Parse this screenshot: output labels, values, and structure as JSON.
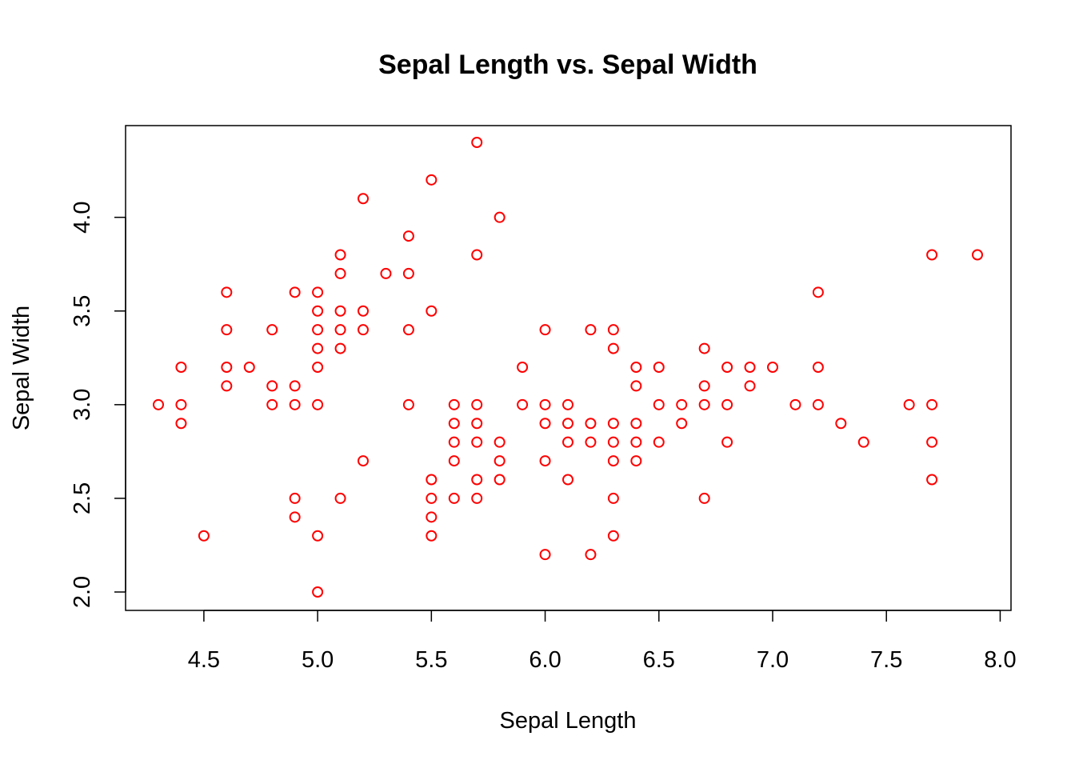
{
  "chart_data": {
    "type": "scatter",
    "title": "Sepal Length vs. Sepal Width",
    "xlabel": "Sepal Length",
    "ylabel": "Sepal Width",
    "xlim": [
      4.3,
      7.9
    ],
    "ylim": [
      2.0,
      4.4
    ],
    "x_ticks": [
      "4.5",
      "5.0",
      "5.5",
      "6.0",
      "6.5",
      "7.0",
      "7.5",
      "8.0"
    ],
    "y_ticks": [
      "2.0",
      "2.5",
      "3.0",
      "3.5",
      "4.0"
    ],
    "grid": false,
    "legend": "none",
    "marker": "open-circle",
    "point_color": "#ff0000",
    "points": [
      [
        4.3,
        3.0
      ],
      [
        4.4,
        3.2
      ],
      [
        4.4,
        3.0
      ],
      [
        4.4,
        2.9
      ],
      [
        4.5,
        2.3
      ],
      [
        4.6,
        3.6
      ],
      [
        4.6,
        3.4
      ],
      [
        4.6,
        3.2
      ],
      [
        4.6,
        3.1
      ],
      [
        4.7,
        3.2
      ],
      [
        4.8,
        3.4
      ],
      [
        4.8,
        3.1
      ],
      [
        4.8,
        3.0
      ],
      [
        4.9,
        3.6
      ],
      [
        4.9,
        3.1
      ],
      [
        4.9,
        3.0
      ],
      [
        4.9,
        2.5
      ],
      [
        4.9,
        2.4
      ],
      [
        5.0,
        3.6
      ],
      [
        5.0,
        3.5
      ],
      [
        5.0,
        3.4
      ],
      [
        5.0,
        3.3
      ],
      [
        5.0,
        3.2
      ],
      [
        5.0,
        3.0
      ],
      [
        5.0,
        2.3
      ],
      [
        5.0,
        2.0
      ],
      [
        5.1,
        3.8
      ],
      [
        5.1,
        3.7
      ],
      [
        5.1,
        3.5
      ],
      [
        5.1,
        3.4
      ],
      [
        5.1,
        3.3
      ],
      [
        5.1,
        2.5
      ],
      [
        5.2,
        4.1
      ],
      [
        5.2,
        3.5
      ],
      [
        5.2,
        3.4
      ],
      [
        5.2,
        2.7
      ],
      [
        5.3,
        3.7
      ],
      [
        5.4,
        3.9
      ],
      [
        5.4,
        3.7
      ],
      [
        5.4,
        3.4
      ],
      [
        5.4,
        3.0
      ],
      [
        5.5,
        4.2
      ],
      [
        5.5,
        3.5
      ],
      [
        5.5,
        2.6
      ],
      [
        5.5,
        2.5
      ],
      [
        5.5,
        2.4
      ],
      [
        5.5,
        2.3
      ],
      [
        5.6,
        3.0
      ],
      [
        5.6,
        2.9
      ],
      [
        5.6,
        2.8
      ],
      [
        5.6,
        2.7
      ],
      [
        5.6,
        2.5
      ],
      [
        5.7,
        4.4
      ],
      [
        5.7,
        3.8
      ],
      [
        5.7,
        3.0
      ],
      [
        5.7,
        2.9
      ],
      [
        5.7,
        2.8
      ],
      [
        5.7,
        2.6
      ],
      [
        5.7,
        2.5
      ],
      [
        5.8,
        4.0
      ],
      [
        5.8,
        2.8
      ],
      [
        5.8,
        2.7
      ],
      [
        5.8,
        2.6
      ],
      [
        5.9,
        3.2
      ],
      [
        5.9,
        3.0
      ],
      [
        6.0,
        3.4
      ],
      [
        6.0,
        3.0
      ],
      [
        6.0,
        2.9
      ],
      [
        6.0,
        2.7
      ],
      [
        6.0,
        2.2
      ],
      [
        6.1,
        3.0
      ],
      [
        6.1,
        2.9
      ],
      [
        6.1,
        2.8
      ],
      [
        6.1,
        2.6
      ],
      [
        6.2,
        3.4
      ],
      [
        6.2,
        2.9
      ],
      [
        6.2,
        2.8
      ],
      [
        6.2,
        2.2
      ],
      [
        6.3,
        3.4
      ],
      [
        6.3,
        3.3
      ],
      [
        6.3,
        2.9
      ],
      [
        6.3,
        2.8
      ],
      [
        6.3,
        2.7
      ],
      [
        6.3,
        2.5
      ],
      [
        6.3,
        2.3
      ],
      [
        6.4,
        3.2
      ],
      [
        6.4,
        3.1
      ],
      [
        6.4,
        2.9
      ],
      [
        6.4,
        2.8
      ],
      [
        6.4,
        2.7
      ],
      [
        6.5,
        3.2
      ],
      [
        6.5,
        3.0
      ],
      [
        6.5,
        2.8
      ],
      [
        6.6,
        3.0
      ],
      [
        6.6,
        2.9
      ],
      [
        6.7,
        3.3
      ],
      [
        6.7,
        3.1
      ],
      [
        6.7,
        3.0
      ],
      [
        6.7,
        2.5
      ],
      [
        6.8,
        3.2
      ],
      [
        6.8,
        3.0
      ],
      [
        6.8,
        2.8
      ],
      [
        6.9,
        3.2
      ],
      [
        6.9,
        3.1
      ],
      [
        7.0,
        3.2
      ],
      [
        7.1,
        3.0
      ],
      [
        7.2,
        3.6
      ],
      [
        7.2,
        3.2
      ],
      [
        7.2,
        3.0
      ],
      [
        7.3,
        2.9
      ],
      [
        7.4,
        2.8
      ],
      [
        7.6,
        3.0
      ],
      [
        7.7,
        3.8
      ],
      [
        7.7,
        3.0
      ],
      [
        7.7,
        2.8
      ],
      [
        7.7,
        2.6
      ],
      [
        7.9,
        3.8
      ]
    ]
  }
}
